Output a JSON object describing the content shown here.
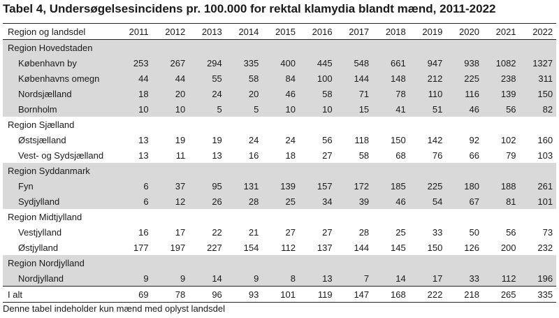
{
  "title": "Tabel 4, Undersøgelsesincidens pr. 100.000 for rektal klamydia blandt mænd, 2011-2022",
  "header": {
    "first": "Region og landsdel",
    "years": [
      "2011",
      "2012",
      "2013",
      "2014",
      "2015",
      "2016",
      "2017",
      "2018",
      "2019",
      "2020",
      "2021",
      "2022"
    ]
  },
  "rows": [
    {
      "label": "Region Hovedstaden",
      "kind": "region",
      "shade": true,
      "values": []
    },
    {
      "label": "København by",
      "kind": "sub",
      "shade": true,
      "values": [
        "253",
        "267",
        "294",
        "335",
        "400",
        "445",
        "548",
        "661",
        "947",
        "938",
        "1082",
        "1327"
      ]
    },
    {
      "label": "Københavns omegn",
      "kind": "sub",
      "shade": true,
      "values": [
        "44",
        "44",
        "55",
        "58",
        "84",
        "100",
        "144",
        "148",
        "212",
        "225",
        "238",
        "311"
      ]
    },
    {
      "label": "Nordsjælland",
      "kind": "sub",
      "shade": true,
      "values": [
        "18",
        "20",
        "24",
        "20",
        "46",
        "58",
        "71",
        "78",
        "110",
        "116",
        "139",
        "150"
      ]
    },
    {
      "label": "Bornholm",
      "kind": "sub",
      "shade": true,
      "values": [
        "10",
        "10",
        "5",
        "5",
        "10",
        "10",
        "15",
        "41",
        "51",
        "46",
        "56",
        "82"
      ]
    },
    {
      "label": "Region Sjælland",
      "kind": "region",
      "shade": false,
      "values": []
    },
    {
      "label": "Østsjælland",
      "kind": "sub",
      "shade": false,
      "values": [
        "13",
        "19",
        "19",
        "24",
        "24",
        "56",
        "118",
        "150",
        "142",
        "92",
        "102",
        "160"
      ]
    },
    {
      "label": "Vest- og Sydsjælland",
      "kind": "sub",
      "shade": false,
      "values": [
        "13",
        "11",
        "13",
        "16",
        "18",
        "27",
        "58",
        "68",
        "76",
        "66",
        "79",
        "103"
      ]
    },
    {
      "label": "Region Syddanmark",
      "kind": "region",
      "shade": true,
      "values": []
    },
    {
      "label": "Fyn",
      "kind": "sub",
      "shade": true,
      "values": [
        "6",
        "37",
        "95",
        "131",
        "139",
        "157",
        "172",
        "185",
        "225",
        "180",
        "188",
        "261"
      ]
    },
    {
      "label": "Sydjylland",
      "kind": "sub",
      "shade": true,
      "values": [
        "6",
        "12",
        "26",
        "28",
        "25",
        "34",
        "39",
        "46",
        "54",
        "67",
        "81",
        "101"
      ]
    },
    {
      "label": "Region Midtjylland",
      "kind": "region",
      "shade": false,
      "values": []
    },
    {
      "label": "Vestjylland",
      "kind": "sub",
      "shade": false,
      "values": [
        "16",
        "17",
        "22",
        "21",
        "27",
        "27",
        "28",
        "25",
        "33",
        "50",
        "56",
        "73"
      ]
    },
    {
      "label": "Østjylland",
      "kind": "sub",
      "shade": false,
      "values": [
        "177",
        "197",
        "227",
        "154",
        "112",
        "137",
        "144",
        "145",
        "150",
        "126",
        "200",
        "232"
      ]
    },
    {
      "label": "Region Nordjylland",
      "kind": "region",
      "shade": true,
      "values": []
    },
    {
      "label": "Nordjylland",
      "kind": "sub",
      "shade": true,
      "values": [
        "9",
        "9",
        "14",
        "9",
        "8",
        "13",
        "7",
        "14",
        "17",
        "33",
        "112",
        "196"
      ]
    },
    {
      "label": "I alt",
      "kind": "total",
      "shade": false,
      "values": [
        "69",
        "78",
        "96",
        "93",
        "101",
        "119",
        "147",
        "168",
        "222",
        "218",
        "265",
        "335"
      ]
    }
  ],
  "footnote": "Denne tabel indeholder kun mænd med oplyst landsdel"
}
